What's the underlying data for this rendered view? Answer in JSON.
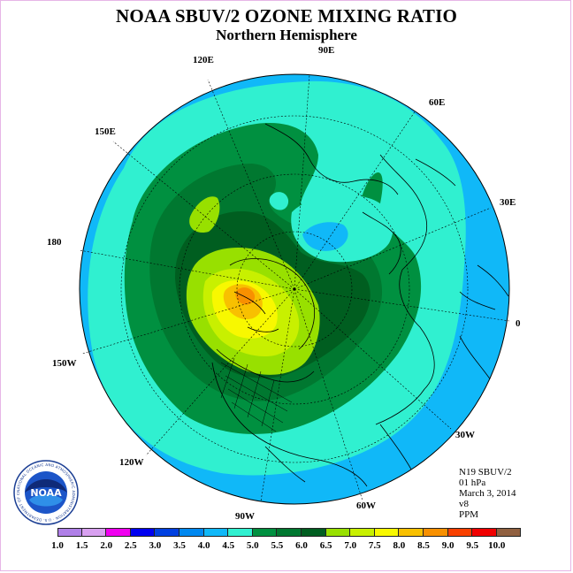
{
  "title": "NOAA SBUV/2 OZONE MIXING RATIO",
  "subtitle": "Northern Hemisphere",
  "longitude_labels": [
    "90E",
    "60E",
    "30E",
    "0",
    "30W",
    "60W",
    "90W",
    "120W",
    "150W",
    "180",
    "150E",
    "120E"
  ],
  "info": {
    "satellite": "N19 SBUV/2",
    "level": "01 hPa",
    "date": "March 3, 2014",
    "version": "v8",
    "units": "PPM"
  },
  "logo": {
    "text": "NOAA",
    "ring_text": "NATIONAL OCEANIC AND ATMOSPHERIC ADMINISTRATION · U.S. DEPARTMENT OF COMMERCE"
  },
  "legend": {
    "labels": [
      "1.0",
      "1.5",
      "2.0",
      "2.5",
      "3.0",
      "3.5",
      "4.0",
      "4.5",
      "5.0",
      "5.5",
      "6.0",
      "6.5",
      "7.0",
      "7.5",
      "8.0",
      "8.5",
      "9.0",
      "9.5",
      "10.0"
    ],
    "colors": [
      "#b080e8",
      "#d8a0f0",
      "#f000f0",
      "#0000f0",
      "#0040e0",
      "#0088f0",
      "#10b8f8",
      "#30f0d0",
      "#009040",
      "#007830",
      "#005e20",
      "#98e000",
      "#c8f000",
      "#f8f800",
      "#f8c000",
      "#f89000",
      "#f84000",
      "#f00000",
      "#906040"
    ]
  }
}
